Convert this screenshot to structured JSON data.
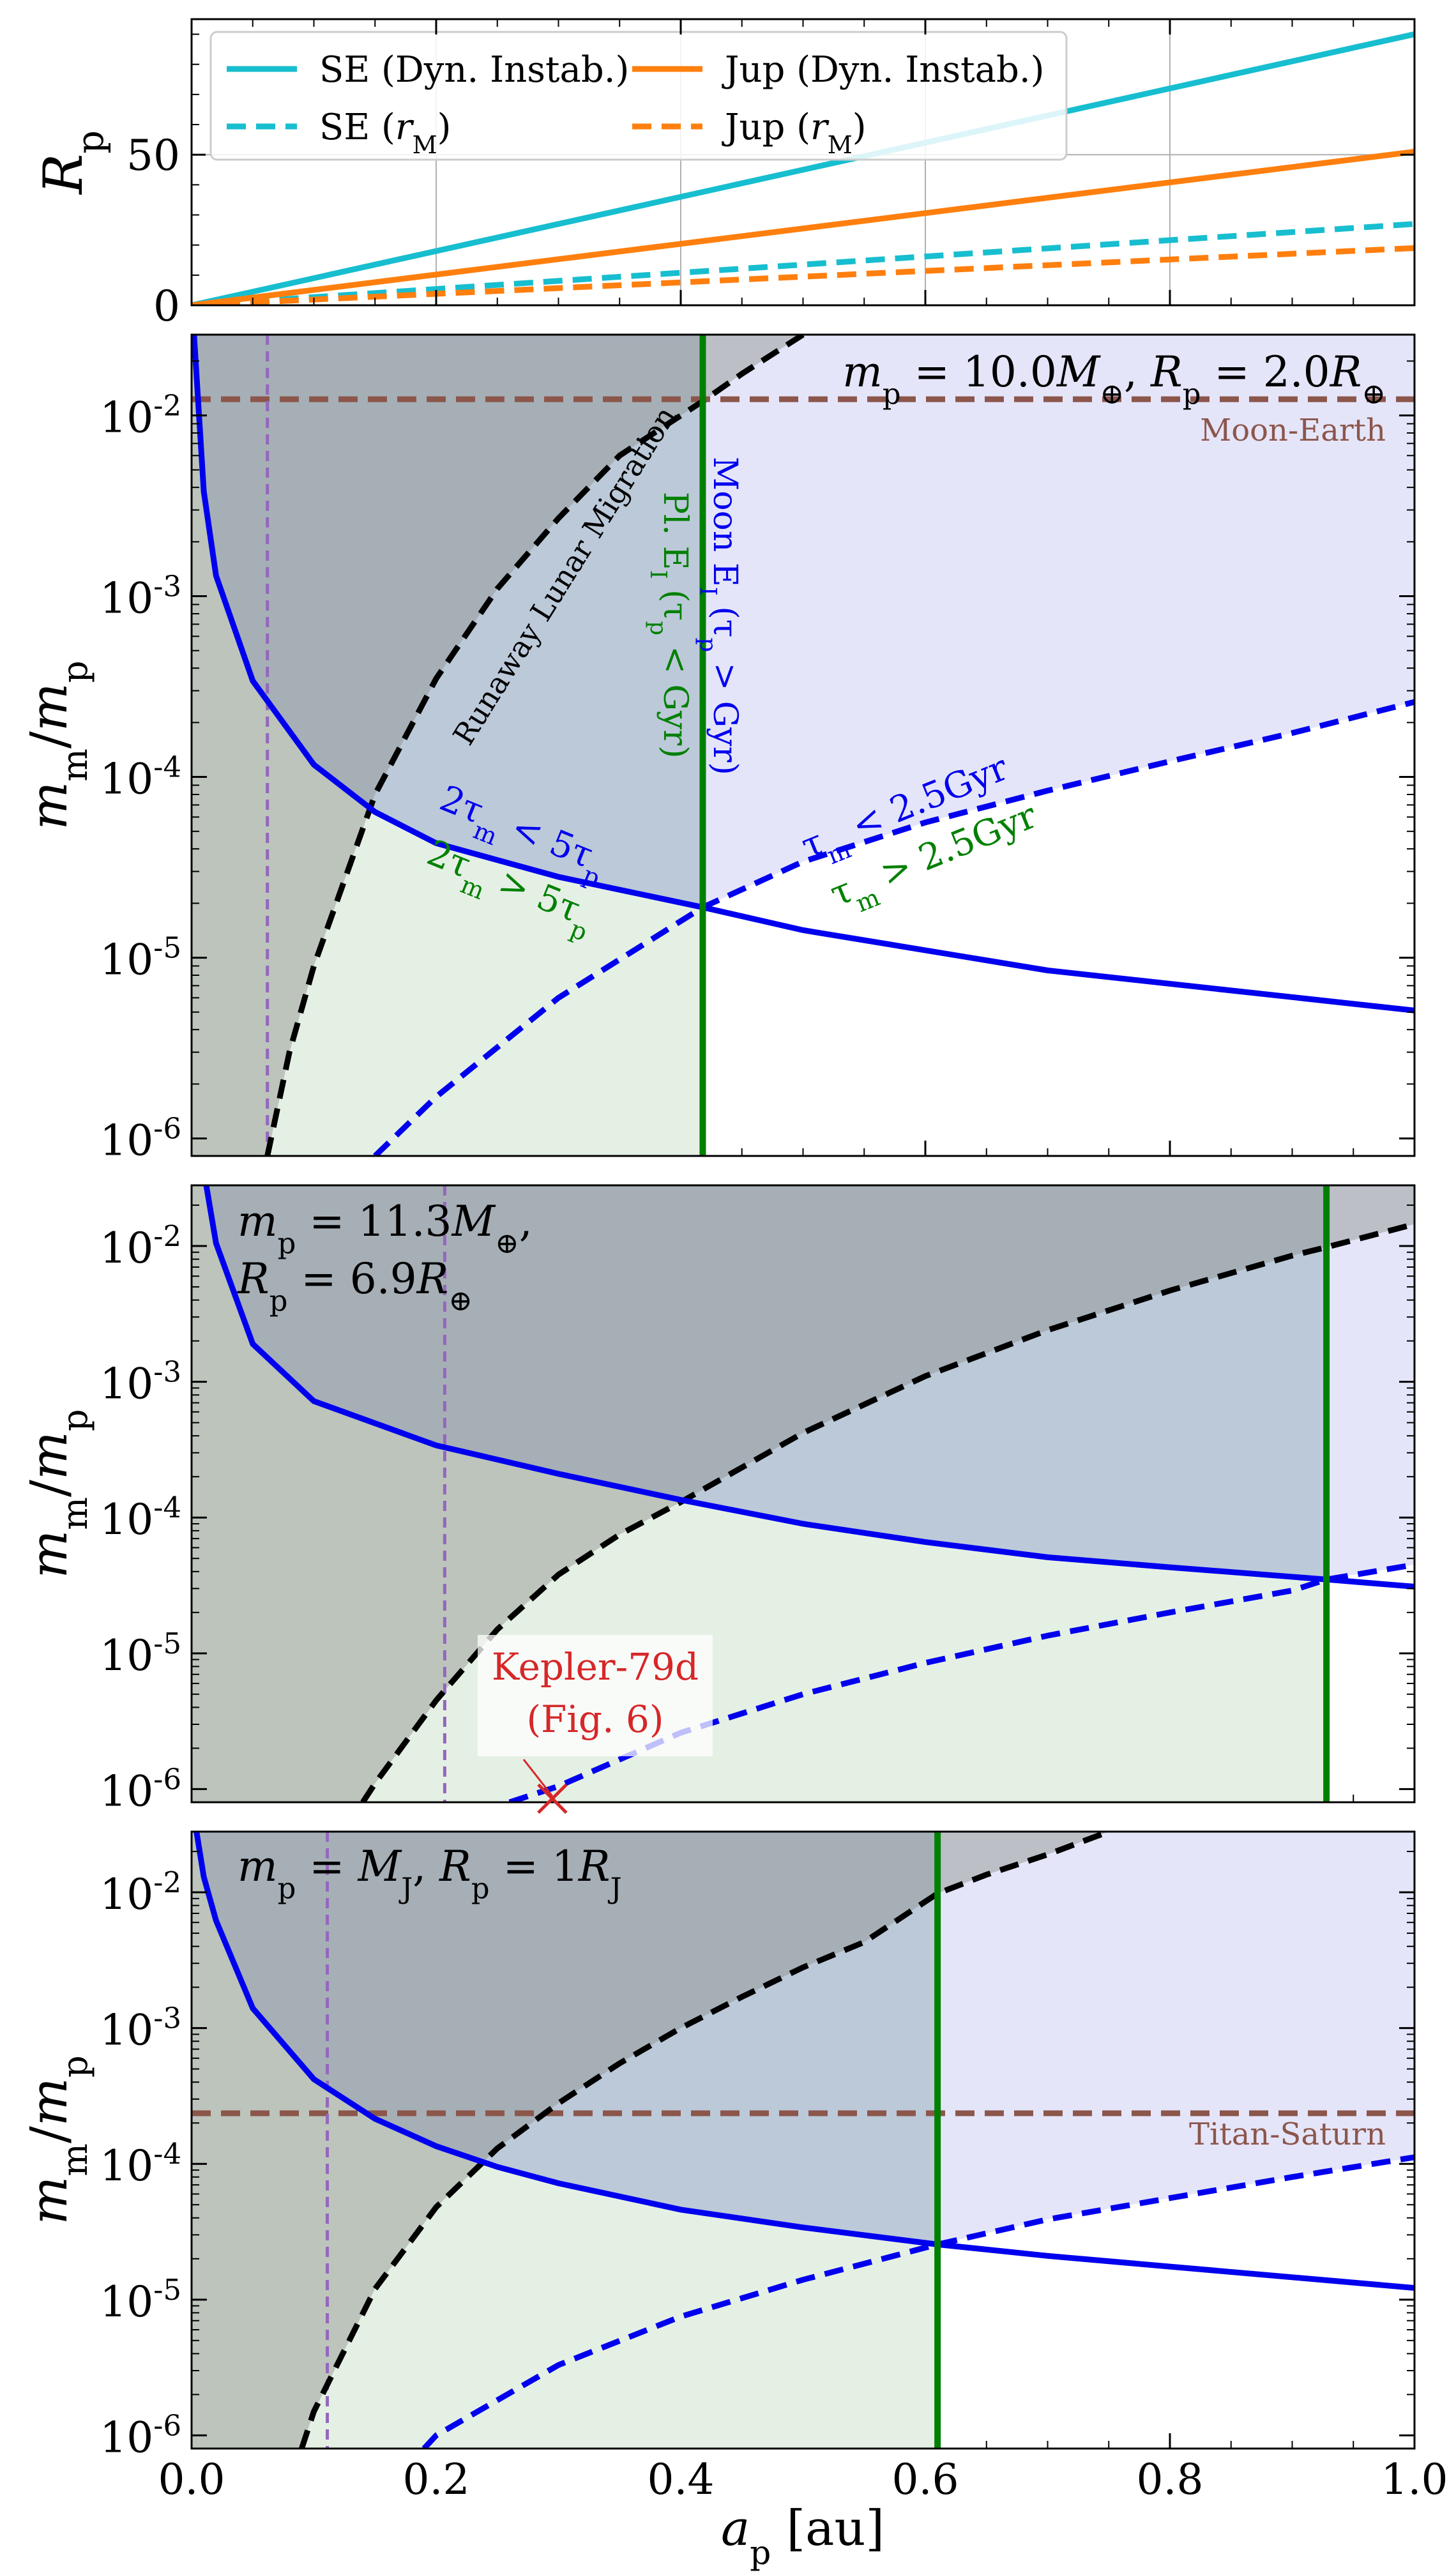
{
  "colors": {
    "se": "#17becf",
    "jup": "#ff7f0e",
    "moon_blue": "#0000ee",
    "green": "#008000",
    "black": "#000000",
    "purple": "#9467bd",
    "brown": "#8c564b",
    "red": "#d62728",
    "fill_lavender": "#e5e5fa",
    "fill_lightgreen": "#e5f0e5",
    "fill_grey": "#b9c0b9",
    "fill_bluegrey": "#c8d7e3",
    "fill_darkgrey": "#b5b8c5"
  },
  "chart_data": [
    {
      "type": "line",
      "panel": "radius",
      "ylabel": "R_p",
      "xlim": [
        0.0,
        1.0
      ],
      "ylim": [
        0,
        95
      ],
      "yticks": [
        "0",
        "50"
      ],
      "grid": true,
      "legend_position": "upper-left",
      "x": [
        0.0,
        1.0
      ],
      "series": [
        {
          "name": "SE (Dyn. Instab.)",
          "style": "solid",
          "color": "se",
          "values": [
            0,
            90
          ]
        },
        {
          "name": "SE (r_M)",
          "style": "dashed",
          "color": "se",
          "values": [
            0,
            27
          ]
        },
        {
          "name": "Jup (Dyn. Instab.)",
          "style": "solid",
          "color": "jup",
          "values": [
            0,
            51
          ]
        },
        {
          "name": "Jup (r_M)",
          "style": "dashed",
          "color": "jup",
          "values": [
            0,
            19
          ]
        }
      ]
    },
    {
      "type": "line",
      "panel": "super-earth",
      "ylabel": "m_m/m_p",
      "yscale": "log",
      "xlim": [
        0.0,
        1.0
      ],
      "ylim": [
        8e-07,
        0.028
      ],
      "yticks": [
        "10^-6",
        "10^-5",
        "10^-4",
        "10^-3",
        "10^-2"
      ],
      "annotation": "m_p = 10.0M_⊕, R_p = 2.0R_⊕",
      "reference_line": {
        "label": "Moon-Earth",
        "y": 0.0123
      },
      "roche_a": 0.062,
      "green_a": 0.418,
      "series": [
        {
          "name": "2τ_m < 5τ_p / 2τ_m > 5τ_p",
          "style": "solid",
          "color": "moon_blue",
          "x": [
            0.002,
            0.01,
            0.02,
            0.05,
            0.1,
            0.15,
            0.2,
            0.3,
            0.418,
            0.5,
            0.7,
            1.0
          ],
          "values": [
            0.028,
            0.0038,
            0.0013,
            0.00034,
            0.000117,
            6.4e-05,
            4.3e-05,
            2.8e-05,
            1.9e-05,
            1.42e-05,
            8.5e-06,
            5.1e-06
          ]
        },
        {
          "name": "τ_m < 2.5Gyr / τ_m > 2.5Gyr",
          "style": "dashed",
          "color": "moon_blue",
          "x": [
            0.15,
            0.2,
            0.3,
            0.418,
            0.5,
            0.6,
            0.7,
            0.8,
            0.9,
            1.0
          ],
          "values": [
            8e-07,
            1.7e-06,
            6e-06,
            1.9e-05,
            3.4e-05,
            5.6e-05,
            8.4e-05,
            0.000122,
            0.000175,
            0.00026
          ]
        },
        {
          "name": "Runaway Lunar Migration",
          "style": "dashed",
          "color": "black",
          "x": [
            0.062,
            0.08,
            0.1,
            0.15,
            0.2,
            0.25,
            0.3,
            0.35,
            0.418,
            0.45,
            0.5
          ],
          "values": [
            8e-07,
            3e-06,
            9e-06,
            8e-05,
            0.00035,
            0.0011,
            0.0027,
            0.006,
            0.012,
            0.017,
            0.028
          ]
        }
      ]
    },
    {
      "type": "line",
      "panel": "kepler-79d",
      "ylabel": "m_m/m_p",
      "yscale": "log",
      "xlim": [
        0.0,
        1.0
      ],
      "ylim": [
        8e-07,
        0.028
      ],
      "yticks": [
        "10^-6",
        "10^-5",
        "10^-4",
        "10^-3",
        "10^-2"
      ],
      "annotation_line1": "m_p = 11.3M_⊕,",
      "annotation_line2": "R_p = 6.9R_⊕",
      "callout_line1": "Kepler-79d",
      "callout_line2": "(Fig. 6)",
      "marker": {
        "x": 0.295,
        "y": 8.5e-07
      },
      "roche_a": 0.207,
      "green_a": 0.928,
      "series": [
        {
          "name": "2τ_m < 5τ_p / 2τ_m > 5τ_p",
          "style": "solid",
          "color": "moon_blue",
          "x": [
            0.012,
            0.02,
            0.05,
            0.1,
            0.2,
            0.3,
            0.4,
            0.5,
            0.6,
            0.7,
            0.8,
            0.928,
            1.0
          ],
          "values": [
            0.028,
            0.0105,
            0.0019,
            0.00072,
            0.00034,
            0.00021,
            0.000135,
            9e-05,
            6.6e-05,
            5.1e-05,
            4.3e-05,
            3.5e-05,
            3.1e-05
          ]
        },
        {
          "name": "τ_m < 2.5Gyr / τ_m > 2.5Gyr",
          "style": "dashed",
          "color": "moon_blue",
          "x": [
            0.26,
            0.3,
            0.4,
            0.5,
            0.6,
            0.7,
            0.8,
            0.9,
            0.928,
            1.0
          ],
          "values": [
            8e-07,
            1.05e-06,
            2.6e-06,
            5e-06,
            8.5e-06,
            1.35e-05,
            2e-05,
            2.9e-05,
            3.5e-05,
            4.5e-05
          ]
        },
        {
          "name": "Runaway Lunar Migration",
          "style": "dashed",
          "color": "black",
          "x": [
            0.14,
            0.15,
            0.2,
            0.25,
            0.3,
            0.35,
            0.4,
            0.5,
            0.6,
            0.7,
            0.8,
            0.9,
            0.928,
            1.0
          ],
          "values": [
            8e-07,
            1.1e-06,
            4.5e-06,
            1.5e-05,
            3.8e-05,
            7.5e-05,
            0.00013,
            0.00042,
            0.0011,
            0.0024,
            0.0047,
            0.0085,
            0.0098,
            0.0145
          ]
        }
      ]
    },
    {
      "type": "line",
      "panel": "jupiter",
      "ylabel": "m_m/m_p",
      "xlabel": "a_p [au]",
      "yscale": "log",
      "xlim": [
        0.0,
        1.0
      ],
      "ylim": [
        8e-07,
        0.028
      ],
      "xticks": [
        "0.0",
        "0.2",
        "0.4",
        "0.6",
        "0.8",
        "1.0"
      ],
      "yticks": [
        "10^-6",
        "10^-5",
        "10^-4",
        "10^-3",
        "10^-2"
      ],
      "annotation": "m_p = M_J, R_p = 1R_J",
      "reference_line": {
        "label": "Titan-Saturn",
        "y": 0.000236
      },
      "roche_a": 0.111,
      "green_a": 0.61,
      "series": [
        {
          "name": "2τ_m < 5τ_p / 2τ_m > 5τ_p",
          "style": "solid",
          "color": "moon_blue",
          "x": [
            0.004,
            0.01,
            0.02,
            0.05,
            0.1,
            0.15,
            0.2,
            0.25,
            0.3,
            0.4,
            0.5,
            0.61,
            0.7,
            0.8,
            1.0
          ],
          "values": [
            0.028,
            0.013,
            0.0062,
            0.0014,
            0.00042,
            0.000215,
            0.000135,
            9.5e-05,
            7.2e-05,
            4.6e-05,
            3.4e-05,
            2.55e-05,
            2.1e-05,
            1.75e-05,
            1.22e-05
          ]
        },
        {
          "name": "τ_m < 2.5Gyr / τ_m > 2.5Gyr",
          "style": "dashed",
          "color": "moon_blue",
          "x": [
            0.19,
            0.2,
            0.3,
            0.4,
            0.5,
            0.61,
            0.7,
            0.8,
            0.9,
            1.0
          ],
          "values": [
            8e-07,
            1e-06,
            3.3e-06,
            7.5e-06,
            1.4e-05,
            2.55e-05,
            3.9e-05,
            5.6e-05,
            8e-05,
            0.000112
          ]
        },
        {
          "name": "Runaway Lunar Migration",
          "style": "dashed",
          "color": "black",
          "x": [
            0.09,
            0.1,
            0.15,
            0.2,
            0.25,
            0.3,
            0.35,
            0.4,
            0.45,
            0.5,
            0.55,
            0.61,
            0.65,
            0.7,
            0.75
          ],
          "values": [
            8e-07,
            1.5e-06,
            1.2e-05,
            4.8e-05,
            0.00013,
            0.00028,
            0.00055,
            0.001,
            0.0017,
            0.0028,
            0.0043,
            0.0098,
            0.0135,
            0.019,
            0.028
          ]
        }
      ]
    }
  ],
  "labels": {
    "rp_axis": "R_p",
    "mm_axis": "m_m/m_p",
    "x_axis": "a_p [au]",
    "legend": [
      "SE (Dyn. Instab.)",
      "SE (r_M)",
      "Jup (Dyn. Instab.)",
      "Jup (r_M)"
    ],
    "runaway": "Runaway Lunar Migration",
    "moon_ei": "Moon E_I (τ_p > Gyr)",
    "planet_ei": "Pl. E_I (τ_p < Gyr)",
    "blue_upper": "2τ_m < 5τ_p",
    "green_lower": "2τ_m > 5τ_p",
    "tau_upper": "τ_m < 2.5Gyr",
    "tau_lower": "τ_m > 2.5Gyr"
  }
}
